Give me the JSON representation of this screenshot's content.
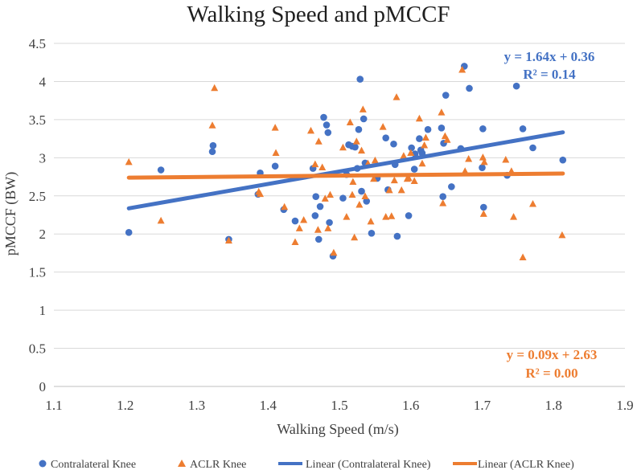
{
  "chart_data": {
    "type": "scatter",
    "title": "Walking Speed and pMCCF",
    "xlabel": "Walking Speed (m/s)",
    "ylabel": "pMCCF (BW)",
    "xlim": [
      1.1,
      1.9
    ],
    "ylim": [
      0,
      4.5
    ],
    "xticks": [
      "1.1",
      "1.2",
      "1.3",
      "1.4",
      "1.5",
      "1.6",
      "1.7",
      "1.8",
      "1.9"
    ],
    "yticks": [
      "0",
      "0.5",
      "1",
      "1.5",
      "2",
      "2.5",
      "3",
      "3.5",
      "4",
      "4.5"
    ],
    "grid": true,
    "legend_position": "bottom",
    "series": [
      {
        "name": "Contralateral Knee",
        "marker": "circle",
        "color": "#4472C4",
        "points": [
          [
            1.205,
            2.02
          ],
          [
            1.25,
            2.84
          ],
          [
            1.322,
            3.08
          ],
          [
            1.323,
            3.16
          ],
          [
            1.345,
            1.93
          ],
          [
            1.386,
            2.52
          ],
          [
            1.389,
            2.8
          ],
          [
            1.41,
            2.89
          ],
          [
            1.422,
            2.32
          ],
          [
            1.438,
            2.17
          ],
          [
            1.463,
            2.86
          ],
          [
            1.466,
            2.24
          ],
          [
            1.467,
            2.49
          ],
          [
            1.471,
            1.93
          ],
          [
            1.473,
            2.36
          ],
          [
            1.478,
            3.53
          ],
          [
            1.482,
            3.43
          ],
          [
            1.484,
            3.33
          ],
          [
            1.486,
            2.15
          ],
          [
            1.491,
            1.71
          ],
          [
            1.505,
            2.47
          ],
          [
            1.51,
            2.78
          ],
          [
            1.513,
            3.17
          ],
          [
            1.518,
            3.15
          ],
          [
            1.522,
            3.14
          ],
          [
            1.525,
            2.86
          ],
          [
            1.527,
            3.37
          ],
          [
            1.529,
            4.03
          ],
          [
            1.531,
            2.56
          ],
          [
            1.534,
            3.51
          ],
          [
            1.536,
            2.93
          ],
          [
            1.538,
            2.43
          ],
          [
            1.545,
            2.01
          ],
          [
            1.553,
            2.73
          ],
          [
            1.565,
            3.26
          ],
          [
            1.568,
            2.58
          ],
          [
            1.576,
            3.18
          ],
          [
            1.578,
            2.91
          ],
          [
            1.581,
            1.97
          ],
          [
            1.597,
            2.24
          ],
          [
            1.601,
            3.13
          ],
          [
            1.605,
            2.85
          ],
          [
            1.606,
            3.05
          ],
          [
            1.612,
            3.25
          ],
          [
            1.614,
            3.1
          ],
          [
            1.616,
            3.06
          ],
          [
            1.624,
            3.37
          ],
          [
            1.643,
            3.39
          ],
          [
            1.645,
            2.49
          ],
          [
            1.646,
            3.19
          ],
          [
            1.649,
            3.82
          ],
          [
            1.657,
            2.62
          ],
          [
            1.67,
            3.12
          ],
          [
            1.675,
            4.2
          ],
          [
            1.682,
            3.91
          ],
          [
            1.701,
            3.38
          ],
          [
            1.702,
            2.35
          ],
          [
            1.7,
            2.87
          ],
          [
            1.735,
            2.77
          ],
          [
            1.748,
            3.94
          ],
          [
            1.757,
            3.38
          ],
          [
            1.771,
            3.13
          ],
          [
            1.813,
            2.97
          ]
        ]
      },
      {
        "name": "ACLR Knee",
        "marker": "triangle",
        "color": "#ED7D31",
        "points": [
          [
            1.205,
            2.95
          ],
          [
            1.25,
            2.18
          ],
          [
            1.322,
            3.43
          ],
          [
            1.325,
            3.92
          ],
          [
            1.345,
            1.92
          ],
          [
            1.387,
            2.56
          ],
          [
            1.389,
            2.53
          ],
          [
            1.41,
            3.4
          ],
          [
            1.411,
            3.07
          ],
          [
            1.423,
            2.36
          ],
          [
            1.438,
            1.9
          ],
          [
            1.444,
            2.08
          ],
          [
            1.45,
            2.19
          ],
          [
            1.46,
            3.36
          ],
          [
            1.466,
            2.92
          ],
          [
            1.47,
            2.06
          ],
          [
            1.471,
            3.22
          ],
          [
            1.476,
            2.88
          ],
          [
            1.48,
            2.47
          ],
          [
            1.484,
            2.08
          ],
          [
            1.487,
            2.52
          ],
          [
            1.492,
            1.76
          ],
          [
            1.505,
            3.14
          ],
          [
            1.51,
            2.23
          ],
          [
            1.515,
            3.47
          ],
          [
            1.518,
            2.52
          ],
          [
            1.519,
            2.69
          ],
          [
            1.521,
            1.96
          ],
          [
            1.524,
            3.22
          ],
          [
            1.528,
            2.39
          ],
          [
            1.531,
            3.1
          ],
          [
            1.533,
            3.64
          ],
          [
            1.536,
            2.5
          ],
          [
            1.54,
            2.93
          ],
          [
            1.544,
            2.17
          ],
          [
            1.548,
            2.73
          ],
          [
            1.55,
            2.97
          ],
          [
            1.561,
            3.41
          ],
          [
            1.565,
            2.23
          ],
          [
            1.57,
            2.58
          ],
          [
            1.573,
            2.24
          ],
          [
            1.577,
            2.71
          ],
          [
            1.58,
            3.8
          ],
          [
            1.587,
            2.58
          ],
          [
            1.59,
            3.03
          ],
          [
            1.595,
            2.73
          ],
          [
            1.597,
            2.74
          ],
          [
            1.6,
            3.07
          ],
          [
            1.605,
            2.7
          ],
          [
            1.612,
            3.52
          ],
          [
            1.616,
            2.93
          ],
          [
            1.619,
            3.17
          ],
          [
            1.621,
            3.27
          ],
          [
            1.643,
            3.6
          ],
          [
            1.645,
            2.41
          ],
          [
            1.648,
            3.29
          ],
          [
            1.651,
            3.24
          ],
          [
            1.672,
            4.16
          ],
          [
            1.676,
            2.83
          ],
          [
            1.681,
            2.99
          ],
          [
            1.701,
            3.01
          ],
          [
            1.702,
            2.27
          ],
          [
            1.703,
            2.95
          ],
          [
            1.733,
            2.98
          ],
          [
            1.741,
            2.83
          ],
          [
            1.744,
            2.23
          ],
          [
            1.757,
            1.7
          ],
          [
            1.771,
            2.4
          ],
          [
            1.812,
            1.99
          ]
        ]
      }
    ],
    "trendlines": [
      {
        "name": "Linear (Contralateral Knee)",
        "color": "#4472C4",
        "slope": 1.64,
        "intercept": 0.36,
        "x_range": [
          1.205,
          1.813
        ],
        "equation": "y = 1.64x + 0.36",
        "r2": "R² = 0.14"
      },
      {
        "name": "Linear (ACLR Knee)",
        "color": "#ED7D31",
        "slope": 0.09,
        "intercept": 2.63,
        "x_range": [
          1.205,
          1.813
        ],
        "equation": "y = 0.09x + 2.63",
        "r2": "R² = 0.00"
      }
    ]
  },
  "legend": {
    "items": [
      {
        "label": "Contralateral Knee",
        "kind": "circle",
        "color": "#4472C4"
      },
      {
        "label": "ACLR Knee",
        "kind": "triangle",
        "color": "#ED7D31"
      },
      {
        "label": "Linear (Contralateral Knee)",
        "kind": "line",
        "color": "#4472C4"
      },
      {
        "label": "Linear (ACLR Knee)",
        "kind": "line",
        "color": "#ED7D31"
      }
    ]
  }
}
